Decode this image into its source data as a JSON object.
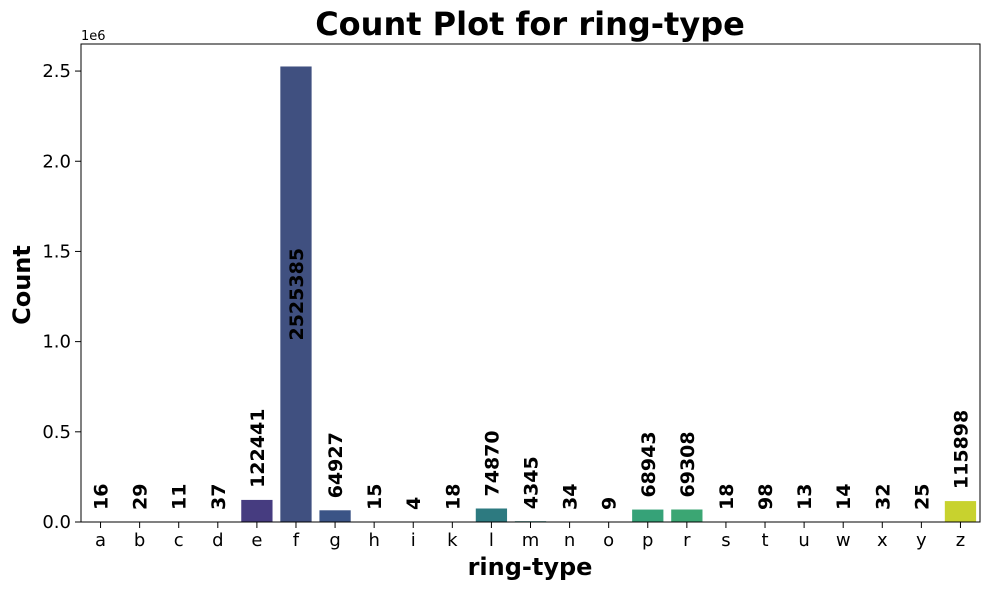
{
  "chart_data": {
    "type": "bar",
    "title": "Count Plot for ring-type",
    "xlabel": "ring-type",
    "ylabel": "Count",
    "offset_label": "1e6",
    "categories": [
      "a",
      "b",
      "c",
      "d",
      "e",
      "f",
      "g",
      "h",
      "i",
      "k",
      "l",
      "m",
      "n",
      "o",
      "p",
      "r",
      "s",
      "t",
      "u",
      "w",
      "x",
      "y",
      "z"
    ],
    "values": [
      16,
      29,
      11,
      37,
      122441,
      2525385,
      64927,
      15,
      4,
      18,
      74870,
      4345,
      34,
      9,
      68943,
      69308,
      18,
      98,
      13,
      14,
      32,
      25,
      115898
    ],
    "colors": [
      "#471365",
      "#472c7a",
      "#424086",
      "#3b518b",
      "#33638d",
      "#2c728e",
      "#26828e",
      "#21918c",
      "#1fa088",
      "#28ae80",
      "#3fbc73",
      "#5ec962",
      "#84d44b",
      "#addc30",
      "#d8e219",
      "#fde725",
      "#472c7a",
      "#424086",
      "#3b518b",
      "#33638d",
      "#2c728e",
      "#26828e",
      "#c8d22e"
    ],
    "bar_colors_by_category": {
      "e": "#463c80",
      "f": "#405080",
      "g": "#3b5486",
      "l": "#2d7a80",
      "m": "#2a8683",
      "p": "#36a278",
      "r": "#3ba673",
      "z": "#c8d22e"
    },
    "ylim": [
      0,
      2650000
    ],
    "yticks": [
      0,
      500000,
      1000000,
      1500000,
      2000000,
      2500000
    ],
    "ytick_labels": [
      "0.0",
      "0.5",
      "1.0",
      "1.5",
      "2.0",
      "2.5"
    ],
    "grid": false,
    "legend": "none"
  }
}
